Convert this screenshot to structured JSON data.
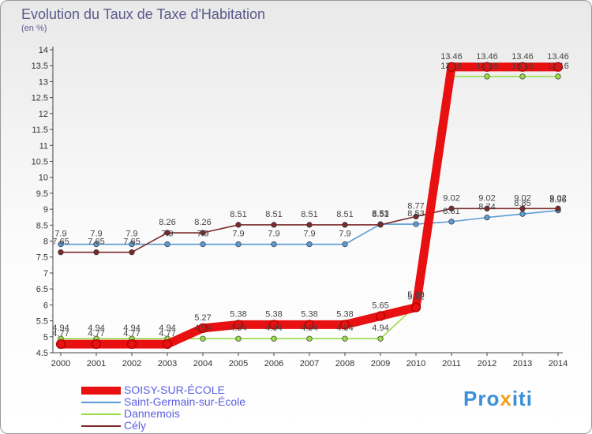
{
  "title": "Evolution du Taux de Taxe d'Habitation",
  "subtitle": "(en %)",
  "brand": {
    "parts": [
      "Pro",
      "x",
      "iti"
    ],
    "colors": [
      "#3a8fd8",
      "#f0a020",
      "#3a8fd8"
    ]
  },
  "chart_data": {
    "type": "line",
    "x": [
      "2000",
      "2001",
      "2002",
      "2003",
      "2004",
      "2005",
      "2006",
      "2007",
      "2008",
      "2009",
      "2010",
      "2011",
      "2012",
      "2013",
      "2014"
    ],
    "ylim": [
      4.5,
      14
    ],
    "yticks": [
      "4.5",
      "5",
      "5.5",
      "6",
      "6.5",
      "7",
      "7.5",
      "8",
      "8.5",
      "9",
      "9.5",
      "10",
      "10.5",
      "11",
      "11.5",
      "12",
      "12.5",
      "13",
      "13.5",
      "14"
    ],
    "grid": false,
    "legend_position": "bottom-left",
    "series": [
      {
        "name": "SOISY-SUR-ÉCOLE",
        "color": "#e81010",
        "values": [
          4.77,
          4.77,
          4.77,
          4.77,
          5.27,
          5.38,
          5.38,
          5.38,
          5.38,
          5.65,
          5.92,
          13.46,
          13.46,
          13.46,
          13.46
        ],
        "labels": [
          "4.77",
          "4.77",
          "4.77",
          "4.77",
          "5.27",
          "5.38",
          "5.38",
          "5.38",
          "5.38",
          "5.65",
          "5.92",
          "13.46",
          "13.46",
          "13.46",
          "13.46"
        ]
      },
      {
        "name": "Saint-Germain-sur-École",
        "color": "#5b9bd5",
        "values": [
          7.9,
          7.9,
          7.9,
          7.9,
          7.9,
          7.9,
          7.9,
          7.9,
          7.9,
          8.53,
          8.53,
          8.61,
          8.74,
          8.85,
          8.96
        ],
        "labels": [
          "7.9",
          "7.9",
          "7.9",
          "7.9",
          "7.9",
          "7.9",
          "7.9",
          "7.9",
          "7.9",
          "8.53",
          "8.53",
          "8.61",
          "8.74",
          "8.85",
          "8.96"
        ]
      },
      {
        "name": "Dannemois",
        "color": "#99dd44",
        "values": [
          4.94,
          4.94,
          4.94,
          4.94,
          4.94,
          4.94,
          4.94,
          4.94,
          4.94,
          4.94,
          5.98,
          13.16,
          13.16,
          13.16,
          13.16
        ],
        "labels": [
          "4.94",
          "4.94",
          "4.94",
          "4.94",
          "4.94",
          "4.94",
          "4.94",
          "4.94",
          "4.94",
          "4.94",
          "5.98",
          "13.16",
          "13.16",
          "13.16",
          "13.16"
        ]
      },
      {
        "name": "Cély",
        "color": "#7a2a2a",
        "values": [
          7.65,
          7.65,
          7.65,
          8.26,
          8.26,
          8.51,
          8.51,
          8.51,
          8.51,
          8.51,
          8.77,
          9.02,
          9.02,
          9.02,
          9.02
        ],
        "labels": [
          "7.65",
          "7.65",
          "7.65",
          "8.26",
          "8.26",
          "8.51",
          "8.51",
          "8.51",
          "8.51",
          "8.51",
          "8.77",
          "9.02",
          "9.02",
          "9.02",
          "9.02"
        ]
      }
    ]
  }
}
